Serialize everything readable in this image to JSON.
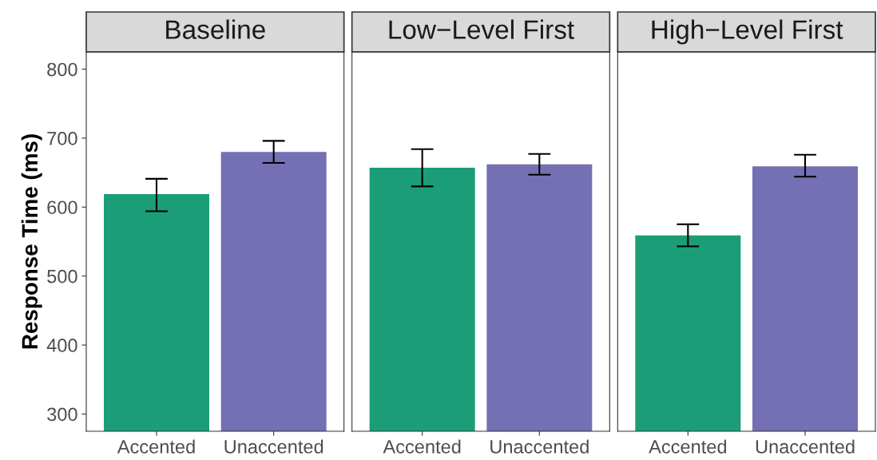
{
  "chart_data": [
    {
      "type": "bar",
      "title": "Baseline",
      "ylabel": "Response Time (ms)",
      "categories": [
        "Accented",
        "Unaccented"
      ],
      "values": [
        619,
        680
      ],
      "colors": [
        "#1b9e77",
        "#7570b3"
      ],
      "errors": [
        [
          594,
          641
        ],
        [
          664,
          696
        ]
      ],
      "ylim": [
        275,
        825
      ],
      "yticks": [
        300,
        400,
        500,
        600,
        700,
        800
      ],
      "grid": false
    },
    {
      "type": "bar",
      "title": "Low−Level First",
      "categories": [
        "Accented",
        "Unaccented"
      ],
      "values": [
        657,
        662
      ],
      "colors": [
        "#1b9e77",
        "#7570b3"
      ],
      "errors": [
        [
          630,
          684
        ],
        [
          647,
          677
        ]
      ],
      "ylim": [
        275,
        825
      ],
      "yticks": [
        300,
        400,
        500,
        600,
        700,
        800
      ],
      "tick_labels": "x",
      "grid": false
    },
    {
      "type": "bar",
      "title": "High−Level First",
      "categories": [
        "Accented",
        "Unaccented"
      ],
      "values": [
        559,
        659
      ],
      "colors": [
        "#1b9e77",
        "#7570b3"
      ],
      "errors": [
        [
          543,
          575
        ],
        [
          644,
          676
        ]
      ],
      "ylim": [
        275,
        825
      ],
      "yticks": [
        300,
        400,
        500,
        600,
        700,
        800
      ],
      "tick_labels": "x",
      "grid": false
    }
  ]
}
